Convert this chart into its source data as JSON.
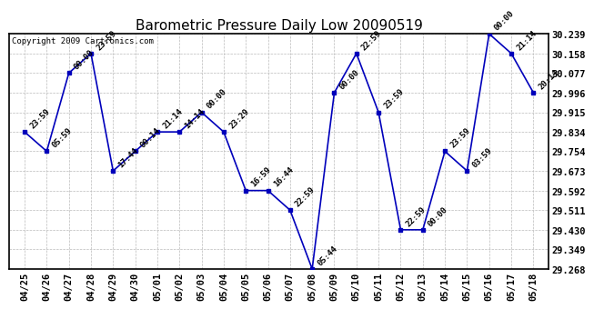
{
  "title": "Barometric Pressure Daily Low 20090519",
  "copyright": "Copyright 2009 Cartronics.com",
  "x_labels": [
    "04/25",
    "04/26",
    "04/27",
    "04/28",
    "04/29",
    "04/30",
    "05/01",
    "05/02",
    "05/03",
    "05/04",
    "05/05",
    "05/06",
    "05/07",
    "05/08",
    "05/09",
    "05/10",
    "05/11",
    "05/12",
    "05/13",
    "05/14",
    "05/15",
    "05/16",
    "05/17",
    "05/18"
  ],
  "y_values": [
    29.834,
    29.754,
    30.077,
    30.158,
    29.673,
    29.754,
    29.834,
    29.834,
    29.915,
    29.834,
    29.592,
    29.592,
    29.511,
    29.268,
    29.996,
    30.158,
    29.915,
    29.43,
    29.43,
    29.754,
    29.673,
    30.239,
    30.158,
    29.996
  ],
  "point_labels": [
    "23:59",
    "05:59",
    "00:00",
    "23:59",
    "17:44",
    "00:14",
    "21:14",
    "14:14",
    "00:00",
    "23:29",
    "16:59",
    "16:44",
    "22:59",
    "05:44",
    "00:00",
    "22:59",
    "23:59",
    "22:59",
    "00:00",
    "23:59",
    "03:59",
    "00:00",
    "21:14",
    "20:14"
  ],
  "y_ticks": [
    29.268,
    29.349,
    29.43,
    29.511,
    29.592,
    29.673,
    29.754,
    29.834,
    29.915,
    29.996,
    30.077,
    30.158,
    30.239
  ],
  "line_color": "#0000bb",
  "marker_color": "#0000bb",
  "background_color": "#ffffff",
  "plot_bg_color": "#ffffff",
  "grid_color": "#bbbbbb",
  "title_fontsize": 11,
  "tick_fontsize": 7.5,
  "label_fontsize": 6.5,
  "copyright_fontsize": 6.5,
  "ylim_min": 29.268,
  "ylim_max": 30.239
}
